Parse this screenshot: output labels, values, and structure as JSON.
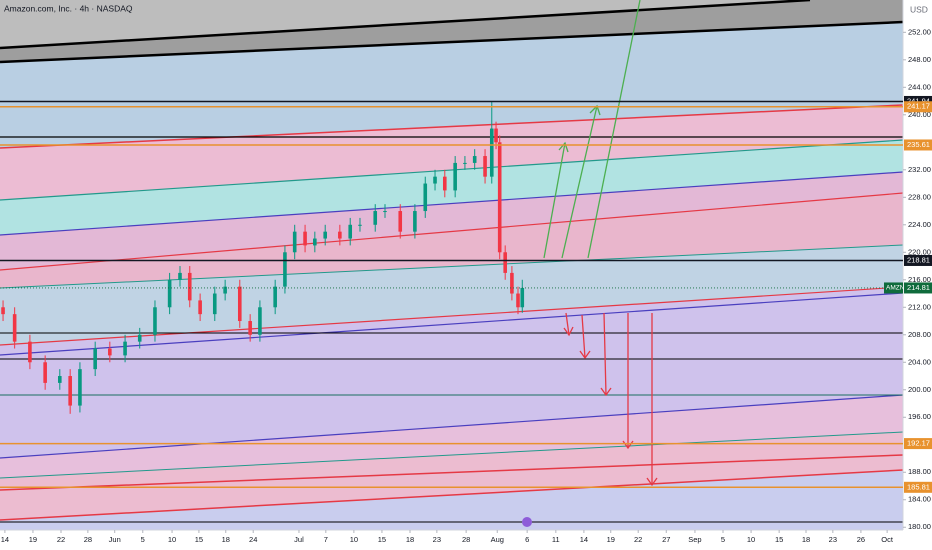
{
  "chart_data": {
    "type": "candlestick",
    "title": "Amazon.com, Inc. · 4h · NASDAQ",
    "currency": "USD",
    "xlim": [
      -0.8,
      147.2
    ],
    "ylim": [
      179.6,
      256.7
    ],
    "yticks": [
      {
        "value": 252,
        "label": "252.00"
      },
      {
        "value": 248,
        "label": "248.00"
      },
      {
        "value": 244,
        "label": "244.00"
      },
      {
        "value": 240,
        "label": "240.00"
      },
      {
        "value": 232,
        "label": "232.00"
      },
      {
        "value": 228,
        "label": "228.00"
      },
      {
        "value": 224,
        "label": "224.00"
      },
      {
        "value": 220,
        "label": "220.00"
      },
      {
        "value": 216,
        "label": "216.00"
      },
      {
        "value": 212,
        "label": "212.00"
      },
      {
        "value": 208,
        "label": "208.00"
      },
      {
        "value": 204,
        "label": "204.00"
      },
      {
        "value": 200,
        "label": "200.00"
      },
      {
        "value": 196,
        "label": "196.00"
      },
      {
        "value": 188,
        "label": "188.00"
      },
      {
        "value": 184,
        "label": "184.00"
      },
      {
        "value": 180,
        "label": "180.00"
      }
    ],
    "xticks": [
      {
        "value": 0,
        "label": "14"
      },
      {
        "value": 4.6,
        "label": "19"
      },
      {
        "value": 9.2,
        "label": "22"
      },
      {
        "value": 13.6,
        "label": "28"
      },
      {
        "value": 18.0,
        "label": "Jun"
      },
      {
        "value": 22.6,
        "label": "5"
      },
      {
        "value": 27.4,
        "label": "10"
      },
      {
        "value": 31.8,
        "label": "15"
      },
      {
        "value": 36.2,
        "label": "18"
      },
      {
        "value": 40.7,
        "label": "24"
      },
      {
        "value": 48.2,
        "label": "Jul"
      },
      {
        "value": 52.6,
        "label": "7"
      },
      {
        "value": 57.2,
        "label": "10"
      },
      {
        "value": 61.8,
        "label": "15"
      },
      {
        "value": 66.4,
        "label": "18"
      },
      {
        "value": 70.8,
        "label": "23"
      },
      {
        "value": 75.6,
        "label": "28"
      },
      {
        "value": 80.7,
        "label": "Aug"
      },
      {
        "value": 85.6,
        "label": "6"
      },
      {
        "value": 90.3,
        "label": "11"
      },
      {
        "value": 94.9,
        "label": "14"
      },
      {
        "value": 99.3,
        "label": "19"
      },
      {
        "value": 103.8,
        "label": "22"
      },
      {
        "value": 108.4,
        "label": "27"
      },
      {
        "value": 113.1,
        "label": "Sep"
      },
      {
        "value": 117.7,
        "label": "5"
      },
      {
        "value": 122.3,
        "label": "10"
      },
      {
        "value": 126.9,
        "label": "15"
      },
      {
        "value": 131.3,
        "label": "18"
      },
      {
        "value": 135.7,
        "label": "23"
      },
      {
        "value": 140.3,
        "label": "26"
      },
      {
        "value": 144.6,
        "label": "Oct"
      }
    ],
    "up_color": "#089981",
    "down_color": "#f23645",
    "candles": {
      "x": [
        -0.3,
        1.6,
        4.1,
        6.6,
        9.0,
        10.7,
        12.3,
        14.8,
        17.2,
        19.7,
        22.1,
        24.6,
        27.0,
        28.7,
        30.3,
        32.0,
        34.4,
        36.1,
        38.5,
        40.2,
        41.8,
        44.3,
        45.9,
        47.5,
        49.2,
        50.8,
        52.5,
        54.9,
        56.6,
        58.2,
        60.7,
        62.3,
        64.8,
        67.2,
        68.9,
        70.5,
        72.1,
        73.8,
        75.4,
        77.0,
        78.7,
        79.8,
        80.5,
        81.1,
        82.0,
        83.1,
        84.1,
        84.8
      ],
      "open": [
        212,
        211,
        207,
        204,
        201,
        202,
        197.7,
        203,
        206,
        205,
        207,
        208,
        212,
        216,
        217,
        213,
        211,
        214,
        215,
        210,
        208,
        212,
        215,
        220,
        223,
        221,
        222,
        223,
        222,
        224,
        224,
        226,
        226,
        223,
        226,
        230,
        231,
        229,
        233,
        233,
        234,
        231,
        238,
        236,
        220,
        217,
        214,
        212
      ],
      "high": [
        213,
        212,
        208,
        205,
        203,
        203,
        204,
        207,
        207,
        208,
        209,
        213,
        217,
        218,
        218,
        214,
        215,
        216,
        216,
        211,
        213,
        216,
        221,
        224,
        224,
        223,
        224,
        224,
        225,
        225,
        227,
        227,
        227,
        227,
        231,
        232,
        232,
        234,
        234,
        235,
        235,
        241.94,
        239,
        237,
        221,
        218,
        215,
        216
      ],
      "low": [
        210,
        206,
        203,
        200,
        200,
        196.5,
        196.7,
        202,
        204,
        204,
        206,
        207,
        211,
        215,
        212,
        210,
        210,
        213,
        209,
        207,
        207,
        211,
        214,
        219,
        220,
        220,
        221,
        221,
        221,
        223,
        223,
        225,
        222,
        222,
        225,
        229,
        228,
        228,
        232,
        232,
        230,
        230,
        235,
        219,
        216,
        213,
        211,
        211.2
      ],
      "close": [
        211,
        207,
        204,
        201,
        202,
        197.7,
        203,
        206,
        205,
        207,
        208,
        212,
        216,
        217,
        213,
        211,
        214,
        215,
        210,
        208,
        212,
        215,
        220,
        223,
        221,
        222,
        223,
        222,
        224,
        224,
        226,
        226,
        223,
        226,
        230,
        231,
        229,
        233,
        233,
        234,
        231,
        238,
        236,
        220,
        217,
        214,
        212,
        214.81
      ]
    },
    "levels": [
      {
        "value": 241.94,
        "color": "#131722"
      },
      {
        "value": 241.17,
        "color": "#e8922e"
      },
      {
        "value": 235.61,
        "color": "#e8922e"
      },
      {
        "value": 218.81,
        "color": "#131722"
      },
      {
        "value": 192.17,
        "color": "#e8922e"
      },
      {
        "value": 185.81,
        "color": "#e8922e"
      }
    ],
    "last_price": {
      "symbol": "AMZN",
      "value": 214.81,
      "color": "#0f6b3c"
    }
  }
}
